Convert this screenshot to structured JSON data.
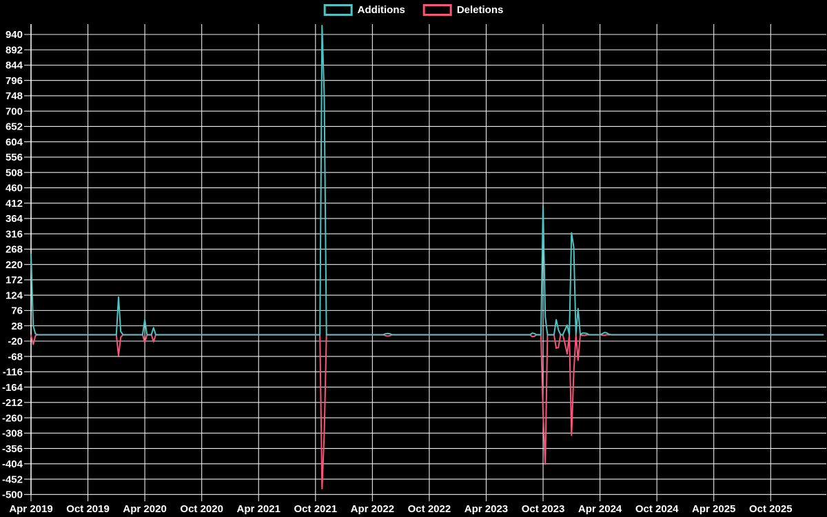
{
  "chart_data": {
    "type": "line",
    "title": "",
    "description": "Weekly additions and deletions frequency chart, black background, white grid",
    "legend_position": "top-center",
    "background_color": "#000000",
    "grid_color": "#ededed",
    "axis_color": "#ffffff",
    "text_color": "#ffffff",
    "x_tick_labels": [
      "Apr 2019",
      "Oct 2019",
      "Apr 2020",
      "Oct 2020",
      "Apr 2021",
      "Oct 2021",
      "Apr 2022",
      "Oct 2022",
      "Apr 2023",
      "Oct 2023",
      "Apr 2024",
      "Oct 2024",
      "Apr 2025",
      "Oct 2025"
    ],
    "y_tick_start": 940,
    "y_tick_step": -48,
    "y_tick_end": -500,
    "y_tick_labels": [
      "940",
      "892",
      "844",
      "796",
      "748",
      "700",
      "652",
      "604",
      "556",
      "508",
      "460",
      "412",
      "364",
      "316",
      "268",
      "220",
      "172",
      "124",
      "76",
      "28",
      "-20",
      "-68",
      "-116",
      "-164",
      "-212",
      "-260",
      "-308",
      "-356",
      "-404",
      "-452",
      "-500"
    ],
    "ylim": [
      -500,
      972
    ],
    "x_unit": "week",
    "weeks_total": 363,
    "weeks_per_tick": 26,
    "baseline": 0,
    "series": [
      {
        "name": "Additions",
        "color": "#4DC4C4",
        "sparse_weekly_values": {
          "0": 252,
          "1": 28,
          "2": 3,
          "40": 118,
          "41": 10,
          "52": 48,
          "56": 22,
          "133": 968,
          "134": 748,
          "162": 3,
          "163": 4,
          "164": 3,
          "229": 5,
          "230": 4,
          "234": 405,
          "235": 56,
          "240": 47,
          "241": 15,
          "244": 15,
          "245": 30,
          "247": 319,
          "248": 275,
          "250": 82,
          "252": 5,
          "253": 5,
          "254": 4,
          "261": 3,
          "262": 7,
          "263": 6,
          "264": 2
        }
      },
      {
        "name": "Deletions",
        "color": "#F7557A",
        "sparse_weekly_values": {
          "0": -2,
          "1": -30,
          "2": -3,
          "40": -65,
          "41": -8,
          "52": -25,
          "56": -22,
          "133": -482,
          "134": -310,
          "162": -3,
          "163": -4,
          "164": -3,
          "229": -6,
          "230": -5,
          "234": -245,
          "235": -405,
          "240": -42,
          "241": -40,
          "244": -28,
          "245": -60,
          "247": -315,
          "248": -120,
          "250": -80,
          "252": -2,
          "253": -2,
          "261": -1,
          "262": -2
        }
      }
    ]
  }
}
